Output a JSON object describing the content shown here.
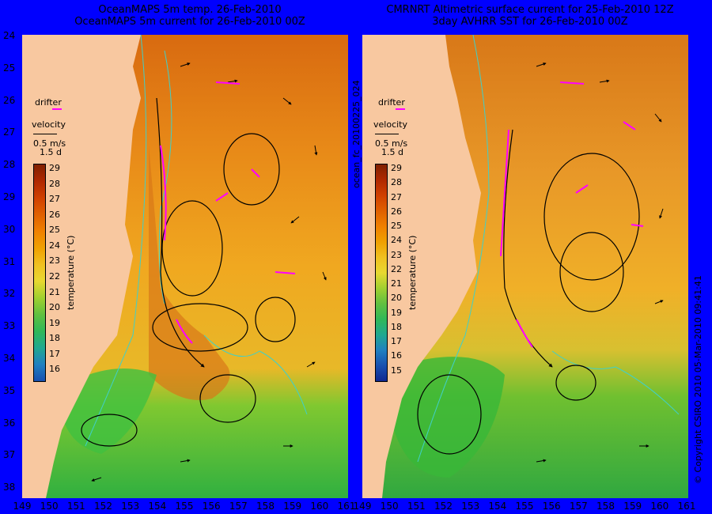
{
  "left_panel": {
    "title_line1": "OceanMAPS 5m temp. 26-Feb-2010",
    "title_line2": "OceanMAPS 5m current for 26-Feb-2010 00Z",
    "colorbar_ticks": [
      "29",
      "28",
      "27",
      "26",
      "25",
      "24",
      "23",
      "22",
      "21",
      "20",
      "19",
      "18",
      "17",
      "16"
    ],
    "colorbar_label": "temperature (°C)"
  },
  "right_panel": {
    "title_line1": "CMRNRT Altimetric surface current for 25-Feb-2010 12Z",
    "title_line2": "3day AVHRR SST for 26-Feb-2010 00Z",
    "colorbar_ticks": [
      "29",
      "28",
      "27",
      "26",
      "25",
      "24",
      "23",
      "22",
      "21",
      "20",
      "19",
      "18",
      "17",
      "16",
      "15"
    ],
    "colorbar_label": "temperature (°C)"
  },
  "legend": {
    "drifter": "drifter",
    "velocity": "velocity",
    "scale": "0.5 m/s",
    "duration": "1.5 d"
  },
  "lat_ticks": [
    "24",
    "25",
    "26",
    "27",
    "28",
    "29",
    "30",
    "31",
    "32",
    "33",
    "34",
    "35",
    "36",
    "37",
    "38"
  ],
  "lon_ticks": [
    "149",
    "150",
    "151",
    "152",
    "153",
    "154",
    "155",
    "156",
    "157",
    "158",
    "159",
    "160",
    "161"
  ],
  "side_id": "ocean_fc_20100225_024",
  "copyright": "© Copyright CSIRO 2010   05-Mar-2010 09:41:41",
  "colors": {
    "land": "#f8c8a0",
    "warm": "#e07810",
    "mid": "#f0a820",
    "cool": "#38b838",
    "drifter": "#ff00ff",
    "contour": "#40d0c8"
  }
}
